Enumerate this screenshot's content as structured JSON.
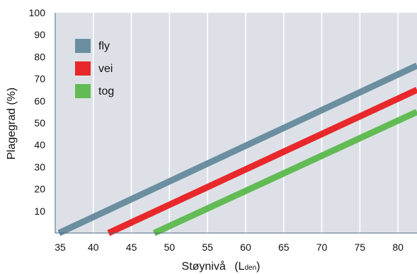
{
  "chart_data": {
    "type": "line",
    "xlabel": "Støynivå",
    "xlabel_unit_base": "L",
    "xlabel_unit_sub": "den",
    "ylabel": "Plagegrad (%)",
    "xlim": [
      35,
      82.5
    ],
    "ylim": [
      0,
      100
    ],
    "xticks": [
      35,
      40,
      45,
      50,
      55,
      60,
      65,
      70,
      75,
      80
    ],
    "yticks": [
      10,
      20,
      30,
      40,
      50,
      60,
      70,
      80,
      90,
      100
    ],
    "grid": true,
    "legend_position": "top-left",
    "series": [
      {
        "name": "fly",
        "color": "#6b8fa0",
        "x": [
          35.5,
          82.5
        ],
        "y": [
          0,
          76
        ]
      },
      {
        "name": "vei",
        "color": "#e8282b",
        "x": [
          42,
          82.5
        ],
        "y": [
          0,
          65
        ]
      },
      {
        "name": "tog",
        "color": "#62bb54",
        "x": [
          48,
          82.5
        ],
        "y": [
          0,
          55
        ]
      }
    ],
    "plot_background": "#dde1e7"
  }
}
